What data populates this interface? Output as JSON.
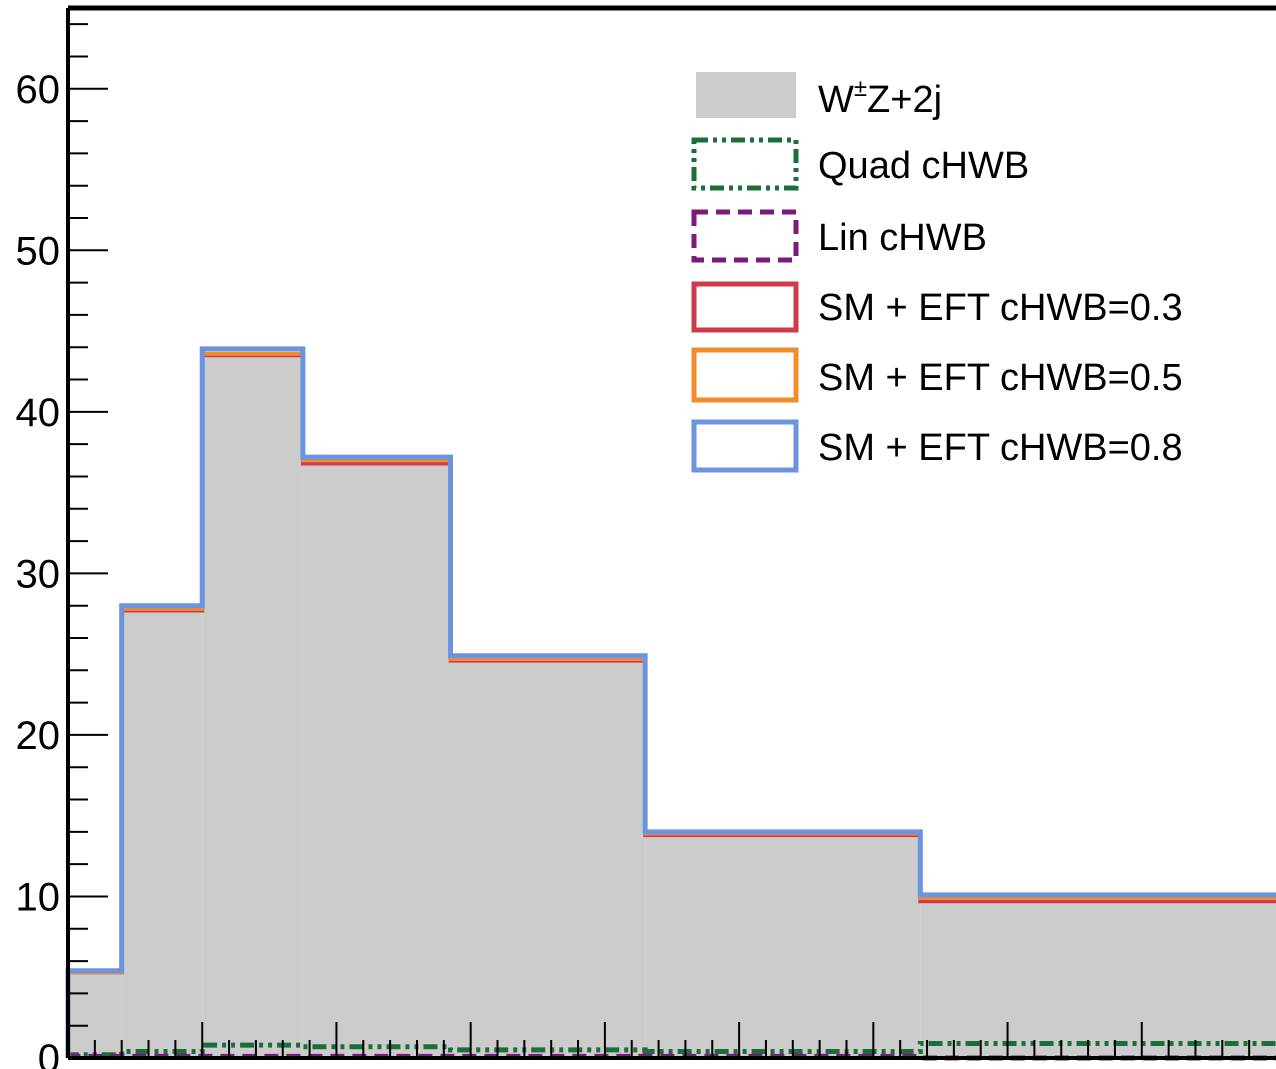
{
  "chart_data": {
    "type": "histogram",
    "title": "",
    "xlabel": "",
    "ylabel": "",
    "ylim": [
      0,
      65
    ],
    "yticks": [
      0,
      10,
      20,
      30,
      40,
      50,
      60
    ],
    "yticklabels": [
      "0",
      "10",
      "20",
      "30",
      "40",
      "50",
      "60"
    ],
    "bin_edges": [
      0,
      0.4,
      1.0,
      1.75,
      2.85,
      4.3,
      6.35,
      9.0
    ],
    "colors": {
      "sm": "#cccccc",
      "quad": "#1a6e3a",
      "lin": "#7b1a7b",
      "eft03": "#d03a4a",
      "eft05": "#f28c28",
      "eft08": "#6a94e0"
    },
    "series": [
      {
        "key": "sm",
        "name": "W±Z+2j",
        "values": [
          5.2,
          27.6,
          43.4,
          36.7,
          24.5,
          13.7,
          9.6
        ]
      },
      {
        "key": "quad",
        "name": "Quad cHWB",
        "values": [
          0.2,
          0.4,
          0.8,
          0.7,
          0.5,
          0.4,
          0.9
        ]
      },
      {
        "key": "lin",
        "name": "Lin cHWB",
        "values": [
          0.1,
          0.1,
          0.1,
          0.1,
          0.1,
          0.1,
          0.0
        ]
      },
      {
        "key": "eft03",
        "name": "SM + EFT cHWB=0.3",
        "values": [
          5.3,
          27.7,
          43.5,
          36.8,
          24.6,
          13.8,
          9.7
        ]
      },
      {
        "key": "eft05",
        "name": "SM + EFT cHWB=0.5",
        "values": [
          5.3,
          27.8,
          43.6,
          37.0,
          24.7,
          13.9,
          9.9
        ]
      },
      {
        "key": "eft08",
        "name": "SM + EFT cHWB=0.8",
        "values": [
          5.4,
          28.0,
          43.9,
          37.2,
          24.9,
          14.0,
          10.1
        ]
      }
    ],
    "legend": {
      "position": "top-right",
      "sm_label_base": "W",
      "sm_label_sup": "±",
      "sm_label_rest": "Z+2j",
      "entries": [
        "Quad cHWB",
        "Lin cHWB",
        "SM + EFT cHWB=0.3",
        "SM + EFT cHWB=0.5",
        "SM + EFT cHWB=0.8"
      ]
    }
  }
}
